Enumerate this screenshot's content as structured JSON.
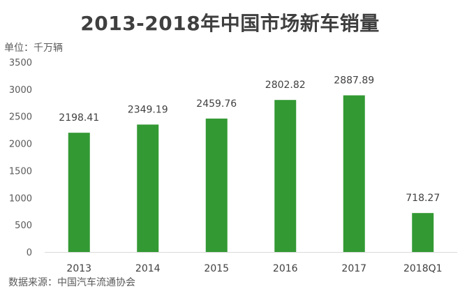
{
  "chart_data": {
    "type": "bar",
    "title": "2013-2018年中国市场新车销量",
    "unit_label": "单位：千万辆",
    "source": "数据来源：中国汽车流通协会",
    "categories": [
      "2013",
      "2014",
      "2015",
      "2016",
      "2017",
      "2018Q1"
    ],
    "values": [
      2198.41,
      2349.19,
      2459.76,
      2802.82,
      2887.89,
      718.27
    ],
    "data_labels": [
      "2198.41",
      "2349.19",
      "2459.76",
      "2802.82",
      "2887.89",
      "718.27"
    ],
    "yticks": [
      "0",
      "500",
      "1000",
      "1500",
      "2000",
      "2500",
      "3000",
      "3500"
    ],
    "ylim": [
      0,
      3500
    ],
    "bar_color": "#339933",
    "grid": false,
    "legend": "none"
  }
}
